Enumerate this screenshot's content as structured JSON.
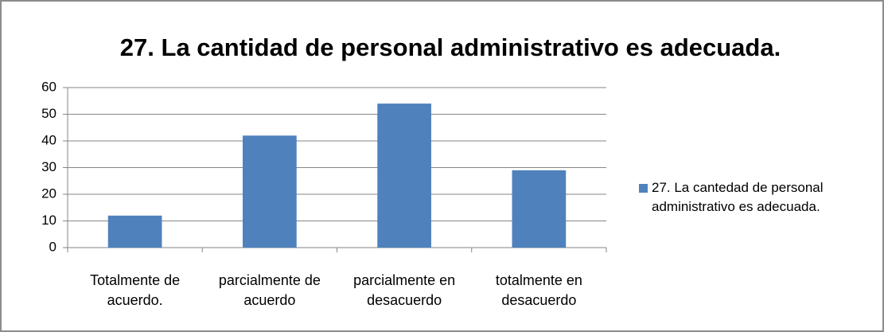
{
  "chart_data": {
    "type": "bar",
    "title": "27. La cantidad de personal administrativo es adecuada.",
    "categories": [
      "Totalmente de acuerdo.",
      "parcialmente de acuerdo",
      "parcialmente en desacuerdo",
      "totalmente en desacuerdo"
    ],
    "series": [
      {
        "name": "27. La cantedad de personal administrativo es adecuada.",
        "color": "#4f81bd",
        "values": [
          12,
          42,
          54,
          29
        ]
      }
    ],
    "ylim": [
      0,
      60
    ],
    "yticks": [
      0,
      10,
      20,
      30,
      40,
      50,
      60
    ],
    "grid": true,
    "legend": "right"
  }
}
